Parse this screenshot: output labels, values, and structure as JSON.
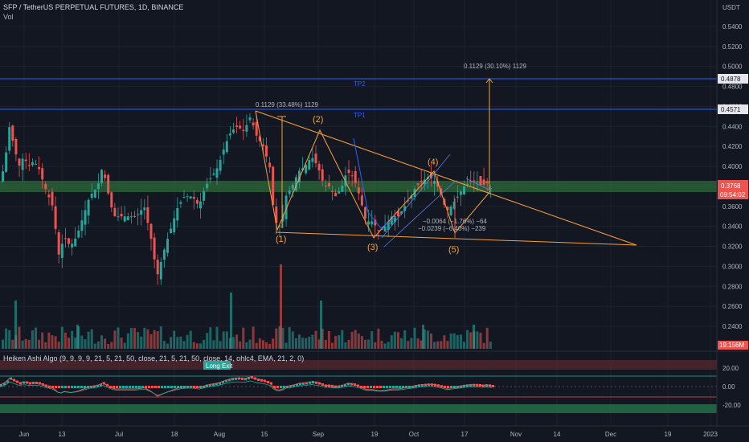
{
  "header": {
    "symbol_line": "SFP / TetherUS PERPETUAL FUTURES, 1D, BINANCE",
    "volume_label": "Vol",
    "indicator_line": "Heiken Ashi Algo (9, 9, 9, 9, 21, 5, 21, 50, close, 21, 5, 21, 50, close, 14, ohlc4, EMA, 21, 2, 0)"
  },
  "axis": {
    "currency": "USDT",
    "price_ticks": [
      "0.5400",
      "0.5200",
      "0.5000",
      "0.4800",
      "0.4600",
      "0.4400",
      "0.4200",
      "0.4000",
      "0.3800",
      "0.3600",
      "0.3400",
      "0.3200",
      "0.3000",
      "0.2800",
      "0.2600",
      "0.2400"
    ],
    "osc_ticks": [
      "20.00",
      "0.00",
      "-20.00"
    ],
    "date_ticks": [
      "Jun",
      "13",
      "Jul",
      "18",
      "Aug",
      "15",
      "Sep",
      "19",
      "Oct",
      "17",
      "Nov",
      "14",
      "Dec",
      "19",
      "2023"
    ]
  },
  "badges": {
    "tp2_price": "0.4878",
    "tp1_price": "0.4571",
    "last_price": "0.3768",
    "countdown": "09:54:02",
    "volume": "19.156M"
  },
  "annotations": {
    "tp1": "TP1",
    "tp2": "TP2",
    "measure_left": "0.1129 (33.48%) 1129",
    "measure_right": "0.1129 (30.10%) 1129",
    "measure_a": "−0.0064 (−1.76%) −64",
    "measure_b": "−0.0239 (−6.40%) −239",
    "waves": [
      "(1)",
      "(2)",
      "(3)",
      "(4)",
      "(5)"
    ],
    "long_exit": "Long Exit"
  },
  "colors": {
    "background": "#131722",
    "up": "#26a69a",
    "down": "#ef5350",
    "orange": "#f7a03a",
    "blue_line": "#2962ff",
    "zone": "#2e6b3a"
  },
  "chart_data": {
    "type": "candlestick",
    "title": "SFP / TetherUS PERPETUAL FUTURES, 1D, BINANCE",
    "ylim": [
      0.225,
      0.565
    ],
    "tp_levels": [
      0.4878,
      0.4571
    ],
    "support_zone": [
      0.3768,
      0.388
    ],
    "ohlc_approx": [
      {
        "period": "early Jun",
        "open": 0.4,
        "high": 0.49,
        "low": 0.37,
        "close": 0.41
      },
      {
        "period": "mid Jun",
        "open": 0.4,
        "high": 0.42,
        "low": 0.3,
        "close": 0.32
      },
      {
        "period": "late Jun",
        "open": 0.32,
        "high": 0.4,
        "low": 0.29,
        "close": 0.37
      },
      {
        "period": "mid Jul",
        "open": 0.37,
        "high": 0.38,
        "low": 0.29,
        "close": 0.31
      },
      {
        "period": "late Jul",
        "open": 0.31,
        "high": 0.39,
        "low": 0.3,
        "close": 0.38
      },
      {
        "period": "early Aug",
        "open": 0.38,
        "high": 0.43,
        "low": 0.37,
        "close": 0.43
      },
      {
        "period": "mid Aug",
        "open": 0.43,
        "high": 0.47,
        "low": 0.41,
        "close": 0.44
      },
      {
        "period": "late Aug",
        "open": 0.44,
        "high": 0.45,
        "low": 0.335,
        "close": 0.36
      },
      {
        "period": "early Sep",
        "open": 0.36,
        "high": 0.42,
        "low": 0.35,
        "close": 0.4
      },
      {
        "period": "mid Sep",
        "open": 0.4,
        "high": 0.41,
        "low": 0.34,
        "close": 0.36
      },
      {
        "period": "late Sep",
        "open": 0.36,
        "high": 0.38,
        "low": 0.325,
        "close": 0.36
      },
      {
        "period": "early Oct",
        "open": 0.36,
        "high": 0.395,
        "low": 0.355,
        "close": 0.39
      },
      {
        "period": "mid Oct",
        "open": 0.39,
        "high": 0.39,
        "low": 0.33,
        "close": 0.36
      },
      {
        "period": "late Oct",
        "open": 0.36,
        "high": 0.395,
        "low": 0.36,
        "close": 0.3768
      }
    ],
    "measures": [
      {
        "label": "0.1129 (33.48%) 1129"
      },
      {
        "label": "0.1129 (30.10%) 1129"
      },
      {
        "label": "−0.0064 (−1.76%) −64"
      },
      {
        "label": "−0.0239 (−6.40%) −239"
      }
    ],
    "volume": {
      "last": "19.156M"
    },
    "oscillator": {
      "ylim": [
        -27,
        27
      ],
      "levels": [
        20,
        0,
        -20
      ]
    }
  }
}
